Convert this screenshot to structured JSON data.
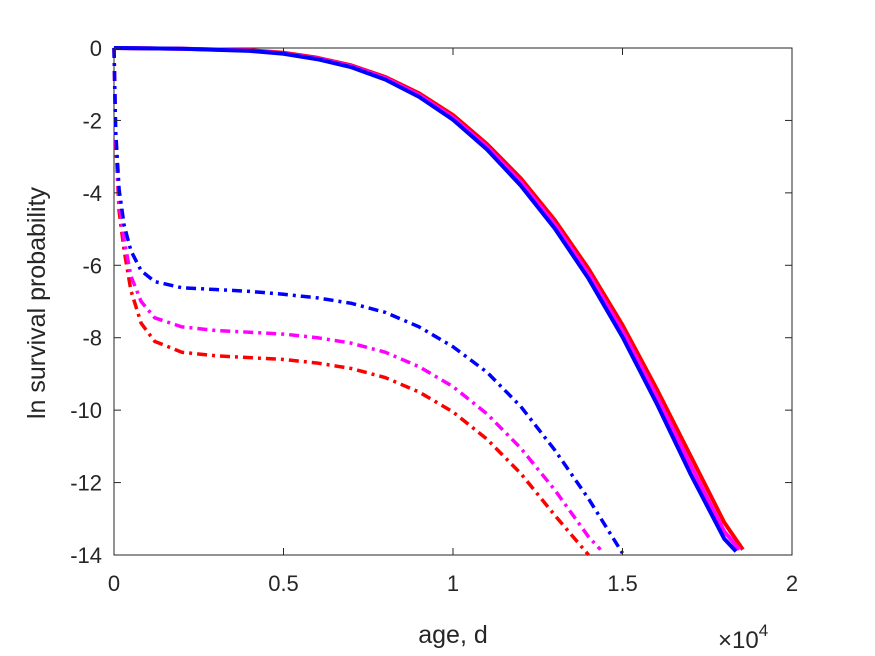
{
  "chart_data": {
    "type": "line",
    "title": "",
    "xlabel": "age, d",
    "ylabel": "ln survival probability",
    "x_scale_exponent_label": {
      "base": "×10",
      "exponent": "4"
    },
    "xlim": [
      0,
      20000
    ],
    "ylim": [
      -14,
      0
    ],
    "xticks": [
      0,
      5000,
      10000,
      15000,
      20000
    ],
    "xtick_labels": [
      "0",
      "0.5",
      "1",
      "1.5",
      "2"
    ],
    "yticks": [
      0,
      -2,
      -4,
      -6,
      -8,
      -10,
      -12,
      -14
    ],
    "ytick_labels": [
      "0",
      "-2",
      "-4",
      "-6",
      "-8",
      "-10",
      "-12",
      "-14"
    ],
    "grid": false,
    "legend": "none",
    "series": [
      {
        "color": "#ff0000",
        "style": "solid",
        "x": [
          0,
          2000,
          4000,
          5000,
          6000,
          7000,
          8000,
          9000,
          10000,
          11000,
          12000,
          13000,
          14000,
          15000,
          16000,
          17000,
          18000,
          18550
        ],
        "y": [
          0,
          -0.02,
          -0.06,
          -0.13,
          -0.27,
          -0.48,
          -0.8,
          -1.25,
          -1.85,
          -2.65,
          -3.6,
          -4.75,
          -6.1,
          -7.65,
          -9.4,
          -11.25,
          -13.1,
          -13.85
        ]
      },
      {
        "color": "#ff00ff",
        "style": "solid",
        "x": [
          0,
          2000,
          4000,
          5000,
          6000,
          7000,
          8000,
          9000,
          10000,
          11000,
          12000,
          13000,
          14000,
          15000,
          16000,
          17000,
          18000,
          18450
        ],
        "y": [
          0,
          -0.02,
          -0.07,
          -0.15,
          -0.29,
          -0.5,
          -0.83,
          -1.3,
          -1.92,
          -2.73,
          -3.7,
          -4.87,
          -6.24,
          -7.82,
          -9.6,
          -11.5,
          -13.35,
          -13.85
        ]
      },
      {
        "color": "#0000ff",
        "style": "solid",
        "x": [
          0,
          2000,
          4000,
          5000,
          6000,
          7000,
          8000,
          9000,
          10000,
          11000,
          12000,
          13000,
          14000,
          15000,
          16000,
          17000,
          18000,
          18350
        ],
        "y": [
          0,
          -0.02,
          -0.08,
          -0.16,
          -0.31,
          -0.53,
          -0.87,
          -1.35,
          -1.98,
          -2.8,
          -3.8,
          -4.98,
          -6.37,
          -7.98,
          -9.8,
          -11.75,
          -13.55,
          -13.9
        ]
      },
      {
        "color": "#ff0000",
        "style": "dashdot",
        "x": [
          0,
          50,
          150,
          300,
          500,
          800,
          1200,
          2000,
          3000,
          4000,
          5000,
          6000,
          7000,
          8000,
          9000,
          10000,
          11000,
          12000,
          13000,
          13500,
          14000
        ],
        "y": [
          0,
          -2.6,
          -4.5,
          -5.6,
          -6.7,
          -7.6,
          -8.1,
          -8.4,
          -8.5,
          -8.55,
          -8.6,
          -8.7,
          -8.85,
          -9.1,
          -9.5,
          -10.05,
          -10.8,
          -11.75,
          -12.9,
          -13.45,
          -14
        ]
      },
      {
        "color": "#ff00ff",
        "style": "dashdot",
        "x": [
          0,
          50,
          150,
          300,
          500,
          800,
          1200,
          2000,
          3000,
          4000,
          5000,
          6000,
          7000,
          8000,
          9000,
          10000,
          11000,
          12000,
          13000,
          14000,
          14350
        ],
        "y": [
          0,
          -2.5,
          -4.3,
          -5.3,
          -6.3,
          -7.0,
          -7.45,
          -7.7,
          -7.8,
          -7.85,
          -7.9,
          -8.0,
          -8.15,
          -8.4,
          -8.8,
          -9.35,
          -10.1,
          -11.05,
          -12.2,
          -13.5,
          -13.85
        ]
      },
      {
        "color": "#0000ff",
        "style": "dashdot",
        "x": [
          0,
          50,
          150,
          300,
          500,
          800,
          1200,
          2000,
          3000,
          4000,
          5000,
          6000,
          7000,
          8000,
          9000,
          10000,
          11000,
          12000,
          13000,
          14000,
          15000
        ],
        "y": [
          0,
          -2.3,
          -3.9,
          -4.9,
          -5.6,
          -6.15,
          -6.45,
          -6.62,
          -6.67,
          -6.72,
          -6.8,
          -6.9,
          -7.05,
          -7.3,
          -7.7,
          -8.25,
          -8.95,
          -9.9,
          -11.1,
          -12.45,
          -13.95
        ]
      }
    ]
  }
}
